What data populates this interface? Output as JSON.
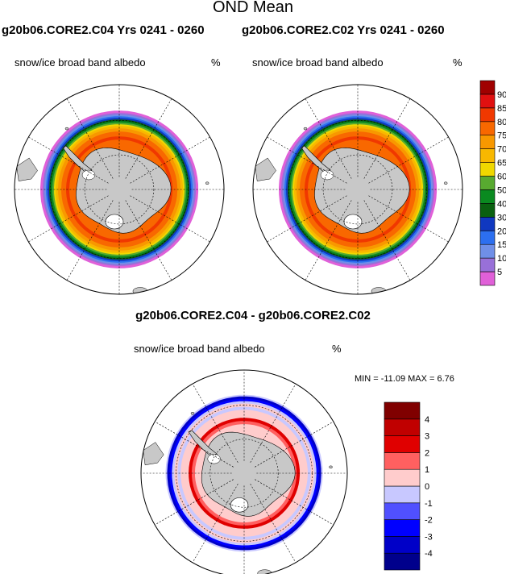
{
  "header": {
    "title": "OND Mean",
    "left_run": "g20b06.CORE2.C04  Yrs 0241 - 0260",
    "right_run": "g20b06.CORE2.C02  Yrs 0241 - 0260"
  },
  "panels": {
    "map1": {
      "variable": "snow/ice broad band albedo",
      "units": "%"
    },
    "map2": {
      "variable": "snow/ice broad band albedo",
      "units": "%"
    },
    "diff": {
      "title": "g20b06.CORE2.C04 - g20b06.CORE2.C02",
      "variable": "snow/ice broad band albedo",
      "units": "%",
      "minmax": "MIN = -11.09 MAX =   6.76"
    }
  },
  "chart_data": [
    {
      "type": "heatmap",
      "map": "south-polar-stereographic",
      "colorbar": {
        "labels": [
          "5",
          "10",
          "15",
          "20",
          "30",
          "40",
          "50",
          "60",
          "65",
          "70",
          "75",
          "80",
          "85",
          "90"
        ],
        "colors": [
          "#e060d8",
          "#9870d8",
          "#6f8fe8",
          "#2c6ff0",
          "#1038c0",
          "#0a6010",
          "#0a8a20",
          "#58aa30",
          "#f0d800",
          "#f8b800",
          "#f89800",
          "#f86800",
          "#f03800",
          "#e01010",
          "#a00000"
        ]
      }
    },
    {
      "type": "heatmap",
      "map": "south-polar-stereographic",
      "colorbar": {
        "labels": [
          "-4",
          "-3",
          "-2",
          "-1",
          "0",
          "1",
          "2",
          "3",
          "4"
        ],
        "colors": [
          "#00008c",
          "#0000c8",
          "#0000ff",
          "#5050ff",
          "#c8c8ff",
          "#ffcccc",
          "#ff6060",
          "#e00000",
          "#c00000",
          "#800000"
        ]
      }
    }
  ]
}
